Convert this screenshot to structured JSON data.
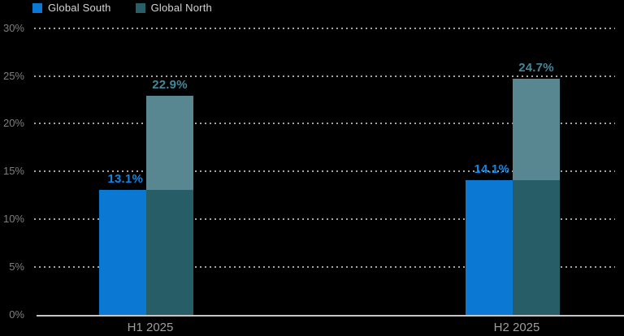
{
  "legend": {
    "items": [
      {
        "label": "Global South",
        "color": "#0b79d4"
      },
      {
        "label": "Global North",
        "color": "#2b5f68"
      }
    ]
  },
  "chart_data": {
    "type": "bar",
    "title": "",
    "xlabel": "",
    "ylabel": "",
    "categories": [
      "H1 2025",
      "H2 2025"
    ],
    "series": [
      {
        "name": "Global South",
        "values": [
          13.1,
          14.1
        ],
        "labels": [
          "13.1%",
          "14.1%"
        ],
        "color": "#0b79d4",
        "label_color": "#0f85e3"
      },
      {
        "name": "Global North",
        "values": [
          22.9,
          24.7
        ],
        "labels": [
          "22.9%",
          "24.7%"
        ],
        "color": "#588791",
        "overlap_color": "#265d66",
        "label_color": "#43889a"
      }
    ],
    "y_ticks": [
      {
        "value": 30,
        "label": "30%"
      },
      {
        "value": 25,
        "label": "25%"
      },
      {
        "value": 20,
        "label": "20%"
      },
      {
        "value": 15,
        "label": "15%"
      },
      {
        "value": 10,
        "label": "10%"
      },
      {
        "value": 5,
        "label": "5%"
      },
      {
        "value": 0,
        "label": "0%"
      }
    ],
    "ylim": [
      0,
      30
    ],
    "grid": "dotted-horizontal",
    "legend_position": "top-left"
  },
  "colors": {
    "background": "#000000",
    "axis_label": "#7f7f7f",
    "category_label": "#9e9e9e",
    "gridline": "#a3a3a3",
    "baseline": "#c6c6c6",
    "legend_text": "#d4d4d4"
  }
}
